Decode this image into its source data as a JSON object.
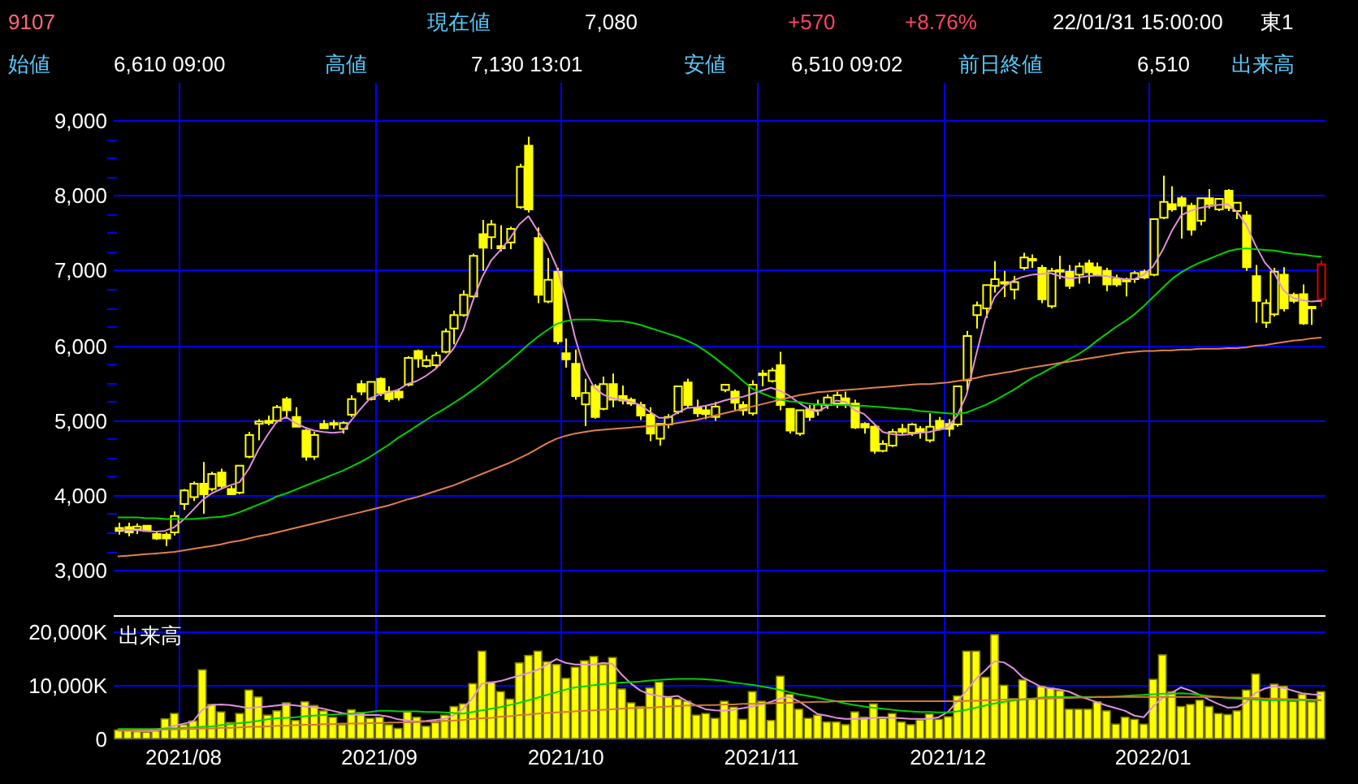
{
  "chart_data": [
    {
      "type": "candlestick",
      "title": "9107",
      "annotations": [
        "現在値",
        "7,080",
        "+570",
        "+8.76%",
        "22/01/31 15:00:00",
        "東1",
        "始値",
        "6,610 09:00",
        "高値",
        "7,130 13:01",
        "安値",
        "6,510 09:02",
        "前日終値",
        "6,510",
        "出来高"
      ],
      "categories": [
        null,
        null,
        null,
        null,
        null,
        null,
        null,
        "2021/08",
        null,
        null,
        null,
        null,
        null,
        null,
        null,
        null,
        null,
        null,
        null,
        null,
        null,
        null,
        null,
        null,
        null,
        null,
        null,
        null,
        "2021/09",
        null,
        null,
        null,
        null,
        null,
        null,
        null,
        null,
        null,
        null,
        null,
        null,
        null,
        null,
        null,
        null,
        null,
        null,
        null,
        "2021/10",
        null,
        null,
        null,
        null,
        null,
        null,
        null,
        null,
        null,
        null,
        null,
        null,
        null,
        null,
        null,
        null,
        null,
        null,
        null,
        null,
        "2021/11",
        null,
        null,
        null,
        null,
        null,
        null,
        null,
        null,
        null,
        null,
        null,
        null,
        null,
        null,
        null,
        null,
        null,
        null,
        null,
        "2021/12",
        null,
        null,
        null,
        null,
        null,
        null,
        null,
        null,
        null,
        null,
        null,
        null,
        null,
        null,
        null,
        null,
        null,
        null,
        null,
        null,
        null,
        "2022/01",
        null,
        null,
        null,
        null,
        null,
        null,
        null,
        null,
        null,
        null,
        null,
        null,
        null,
        null,
        null,
        null,
        null,
        null
      ],
      "ohlc": [
        [
          3560,
          3630,
          3470,
          3520
        ],
        [
          3570,
          3630,
          3450,
          3500
        ],
        [
          3540,
          3620,
          3480,
          3580
        ],
        [
          3590,
          3600,
          3510,
          3520
        ],
        [
          3480,
          3520,
          3400,
          3420
        ],
        [
          3470,
          3500,
          3320,
          3420
        ],
        [
          3500,
          3780,
          3460,
          3720
        ],
        [
          3880,
          4080,
          3800,
          4060
        ],
        [
          3970,
          4180,
          3920,
          4150
        ],
        [
          4150,
          4440,
          3750,
          4010
        ],
        [
          4080,
          4310,
          4050,
          4280
        ],
        [
          4300,
          4350,
          4080,
          4120
        ],
        [
          4080,
          4120,
          4000,
          4010
        ],
        [
          4030,
          4400,
          4010,
          4390
        ],
        [
          4510,
          4840,
          4490,
          4800
        ],
        [
          4950,
          5010,
          4730,
          4980
        ],
        [
          4990,
          5060,
          4930,
          4960
        ],
        [
          4990,
          5200,
          4960,
          5170
        ],
        [
          5280,
          5310,
          5020,
          5130
        ],
        [
          5040,
          5170,
          4900,
          4910
        ],
        [
          4860,
          4880,
          4460,
          4510
        ],
        [
          4510,
          4840,
          4470,
          4800
        ],
        [
          4950,
          5000,
          4880,
          4890
        ],
        [
          4940,
          5000,
          4880,
          4960
        ],
        [
          4880,
          4980,
          4820,
          4960
        ],
        [
          5070,
          5330,
          5040,
          5280
        ],
        [
          5480,
          5530,
          5330,
          5380
        ],
        [
          5280,
          5520,
          5260,
          5510
        ],
        [
          5550,
          5570,
          5320,
          5360
        ],
        [
          5380,
          5450,
          5240,
          5280
        ],
        [
          5380,
          5420,
          5260,
          5300
        ],
        [
          5470,
          5850,
          5450,
          5830
        ],
        [
          5920,
          5940,
          5700,
          5820
        ],
        [
          5720,
          5860,
          5700,
          5800
        ],
        [
          5730,
          5910,
          5700,
          5860
        ],
        [
          5910,
          6220,
          5890,
          6180
        ],
        [
          6220,
          6460,
          6010,
          6400
        ],
        [
          6400,
          6730,
          6380,
          6670
        ],
        [
          6650,
          7220,
          6630,
          7190
        ],
        [
          7480,
          7670,
          6990,
          7300
        ],
        [
          7440,
          7670,
          7280,
          7610
        ],
        [
          7320,
          7600,
          7250,
          7290
        ],
        [
          7370,
          7580,
          7280,
          7550
        ],
        [
          7840,
          8420,
          7820,
          8380
        ],
        [
          8660,
          8780,
          7770,
          7810
        ],
        [
          7430,
          7570,
          6560,
          6670
        ],
        [
          6580,
          7160,
          6560,
          6870
        ],
        [
          6980,
          7030,
          6010,
          6050
        ],
        [
          5890,
          6090,
          5700,
          5810
        ],
        [
          5750,
          5940,
          5270,
          5320
        ],
        [
          5210,
          5550,
          4920,
          5360
        ],
        [
          5450,
          5480,
          5020,
          5040
        ],
        [
          5150,
          5580,
          5130,
          5480
        ],
        [
          5480,
          5620,
          5170,
          5270
        ],
        [
          5320,
          5460,
          5210,
          5260
        ],
        [
          5270,
          5300,
          5190,
          5220
        ],
        [
          5200,
          5240,
          5000,
          5060
        ],
        [
          5070,
          5170,
          4720,
          4820
        ],
        [
          4750,
          4960,
          4660,
          4950
        ],
        [
          4940,
          5080,
          4890,
          5040
        ],
        [
          5110,
          5460,
          5080,
          5450
        ],
        [
          5500,
          5550,
          5160,
          5200
        ],
        [
          5160,
          5270,
          5040,
          5090
        ],
        [
          5130,
          5200,
          5010,
          5080
        ],
        [
          5040,
          5240,
          4990,
          5180
        ],
        [
          5400,
          5480,
          5370,
          5470
        ],
        [
          5380,
          5410,
          5130,
          5230
        ],
        [
          5200,
          5250,
          5060,
          5130
        ],
        [
          5090,
          5530,
          5060,
          5470
        ],
        [
          5600,
          5670,
          5450,
          5620
        ],
        [
          5520,
          5700,
          5500,
          5660
        ],
        [
          5730,
          5910,
          5130,
          5200
        ],
        [
          5150,
          5160,
          4820,
          4860
        ],
        [
          4820,
          5140,
          4790,
          5130
        ],
        [
          5140,
          5200,
          4990,
          5040
        ],
        [
          5130,
          5270,
          5060,
          5210
        ],
        [
          5200,
          5340,
          5150,
          5300
        ],
        [
          5220,
          5380,
          5160,
          5330
        ],
        [
          5290,
          5380,
          5160,
          5200
        ],
        [
          5220,
          5270,
          4880,
          4900
        ],
        [
          4950,
          4970,
          4820,
          4900
        ],
        [
          4910,
          4930,
          4550,
          4590
        ],
        [
          4590,
          4730,
          4570,
          4680
        ],
        [
          4660,
          4880,
          4640,
          4840
        ],
        [
          4880,
          4950,
          4800,
          4840
        ],
        [
          4830,
          4960,
          4790,
          4940
        ],
        [
          4880,
          4920,
          4750,
          4840
        ],
        [
          4730,
          5090,
          4700,
          4910
        ],
        [
          4990,
          5040,
          4860,
          4880
        ],
        [
          4950,
          5010,
          4780,
          4880
        ],
        [
          4940,
          5450,
          4910,
          5450
        ],
        [
          5530,
          6190,
          5390,
          6120
        ],
        [
          6400,
          6580,
          6220,
          6530
        ],
        [
          6490,
          6800,
          6360,
          6800
        ],
        [
          6790,
          7120,
          6700,
          6880
        ],
        [
          6820,
          6990,
          6640,
          6840
        ],
        [
          6740,
          6920,
          6610,
          6840
        ],
        [
          7030,
          7230,
          7000,
          7170
        ],
        [
          7130,
          7210,
          7030,
          7150
        ],
        [
          7030,
          7070,
          6560,
          6610
        ],
        [
          6520,
          7030,
          6490,
          6990
        ],
        [
          6990,
          7190,
          6880,
          7000
        ],
        [
          6980,
          7070,
          6750,
          6790
        ],
        [
          6940,
          7100,
          6820,
          7050
        ],
        [
          7090,
          7140,
          6820,
          6970
        ],
        [
          7040,
          7100,
          6920,
          6940
        ],
        [
          6990,
          7030,
          6720,
          6810
        ],
        [
          6880,
          6940,
          6780,
          6810
        ],
        [
          6880,
          6900,
          6650,
          6850
        ],
        [
          6880,
          6990,
          6830,
          6960
        ],
        [
          6980,
          7010,
          6880,
          6900
        ],
        [
          6940,
          7690,
          6920,
          7680
        ],
        [
          7700,
          8260,
          7680,
          7910
        ],
        [
          7880,
          8120,
          7780,
          7810
        ],
        [
          7960,
          7990,
          7420,
          7860
        ],
        [
          7860,
          7900,
          7460,
          7540
        ],
        [
          7660,
          7970,
          7600,
          7960
        ],
        [
          7960,
          8080,
          7820,
          7880
        ],
        [
          7810,
          7960,
          7790,
          7950
        ],
        [
          8060,
          8080,
          7790,
          7830
        ],
        [
          7790,
          7910,
          7680,
          7900
        ],
        [
          7730,
          7790,
          6990,
          7040
        ],
        [
          6920,
          7070,
          6300,
          6590
        ],
        [
          6300,
          6610,
          6230,
          6560
        ],
        [
          6410,
          7030,
          6380,
          6980
        ],
        [
          6940,
          7040,
          6450,
          6490
        ],
        [
          6670,
          6700,
          6560,
          6590
        ],
        [
          6680,
          6810,
          6270,
          6290
        ],
        [
          6500,
          6520,
          6270,
          6510
        ],
        [
          6610,
          7130,
          6510,
          7080
        ]
      ],
      "colors": [
        "#ffff00",
        "#ffff00",
        "#ffff00",
        "#ffff00",
        "#ffff00",
        "#ffff00",
        "#ffff00",
        "#ffff00",
        "#ffff00",
        "#ffff00",
        "#ffff00",
        "#ffff00",
        "#ffff00",
        "#ffff00",
        "#ffff00",
        "#ffff00",
        "#ffff00",
        "#ffff00",
        "#ffff00",
        "#ffff00",
        "#ffff00",
        "#ffff00",
        "#ffff00",
        "#ffff00",
        "#ffff00",
        "#ffff00",
        "#ffff00",
        "#ffff00",
        "#ffff00",
        "#ffff00",
        "#ffff00",
        "#ffff00",
        "#ffff00",
        "#ffff00",
        "#ffff00",
        "#ffff00",
        "#ffff00",
        "#ffff00",
        "#ffff00",
        "#ffff00",
        "#ffff00",
        "#ffff00",
        "#ffff00",
        "#ffff00",
        "#ffff00",
        "#ffff00",
        "#ffff00",
        "#ffff00",
        "#ffff00",
        "#ffff00",
        "#ffff00",
        "#ffff00",
        "#ffff00",
        "#ffff00",
        "#ffff00",
        "#ffff00",
        "#ffff00",
        "#ffff00",
        "#ffff00",
        "#ffff00",
        "#ffff00",
        "#ffff00",
        "#ffff00",
        "#ffff00",
        "#ffff00",
        "#ffff00",
        "#ffff00",
        "#ffff00",
        "#ffff00",
        "#ffff00",
        "#ffff00",
        "#ffff00",
        "#ffff00",
        "#ffff00",
        "#ffff00",
        "#ffff00",
        "#ffff00",
        "#ffff00",
        "#ffff00",
        "#ffff00",
        "#ffff00",
        "#ffff00",
        "#ffff00",
        "#ffff00",
        "#ffff00",
        "#ffff00",
        "#ffff00",
        "#ffff00",
        "#ffff00",
        "#ffff00",
        "#ffff00",
        "#ffff00",
        "#ffff00",
        "#ffff00",
        "#ffff00",
        "#ffff00",
        "#ffff00",
        "#ffff00",
        "#ffff00",
        "#ffff00",
        "#ffff00",
        "#ffff00",
        "#ffff00",
        "#ffff00",
        "#ffff00",
        "#ffff00",
        "#ffff00",
        "#ffff00",
        "#ffff00",
        "#ffff00",
        "#ffff00",
        "#ffff00",
        "#ffff00",
        "#ffff00",
        "#ffff00",
        "#ffff00",
        "#ffff00",
        "#ffff00",
        "#ffff00",
        "#ffff00",
        "#ffff00",
        "#ffff00",
        "#ffff00",
        "#ffff00",
        "#ffff00",
        "#ffff00",
        "#ffff00",
        "#ffff00",
        "#ffff00",
        "#e00000"
      ],
      "series": [
        {
          "type": "line",
          "color": "#e090e0",
          "values": [
            3540,
            3530,
            3530,
            3520,
            3510,
            3520,
            3570,
            3670,
            3800,
            3930,
            4020,
            4080,
            4130,
            4170,
            4350,
            4600,
            4800,
            4980,
            5040,
            4960,
            4900,
            4860,
            4840,
            4830,
            4840,
            5000,
            5150,
            5290,
            5340,
            5370,
            5400,
            5480,
            5520,
            5590,
            5680,
            5810,
            5960,
            6200,
            6580,
            6900,
            7130,
            7270,
            7420,
            7610,
            7720,
            7520,
            7330,
            7050,
            6620,
            6100,
            5680,
            5440,
            5340,
            5290,
            5270,
            5240,
            5200,
            5110,
            5030,
            5030,
            5100,
            5160,
            5170,
            5190,
            5220,
            5260,
            5290,
            5310,
            5350,
            5390,
            5430,
            5390,
            5320,
            5230,
            5150,
            5110,
            5180,
            5260,
            5240,
            5130,
            5080,
            4960,
            4840,
            4810,
            4800,
            4810,
            4830,
            4840,
            4870,
            4910,
            5060,
            5340,
            5860,
            6350,
            6640,
            6780,
            6860,
            6910,
            6940,
            6950,
            6960,
            6920,
            6890,
            6900,
            6920,
            6930,
            6920,
            6900,
            6880,
            6880,
            6940,
            7050,
            7260,
            7520,
            7730,
            7790,
            7830,
            7850,
            7870,
            7880,
            7780,
            7600,
            7330,
            7100,
            6960,
            6730,
            6630,
            6600,
            6580,
            6590
          ]
        },
        {
          "type": "line",
          "color": "#00d000",
          "values": [
            3700,
            3700,
            3700,
            3690,
            3690,
            3680,
            3680,
            3680,
            3680,
            3690,
            3700,
            3710,
            3730,
            3770,
            3820,
            3870,
            3920,
            3980,
            4020,
            4070,
            4120,
            4170,
            4220,
            4270,
            4320,
            4380,
            4440,
            4510,
            4590,
            4670,
            4760,
            4840,
            4920,
            5000,
            5080,
            5150,
            5230,
            5310,
            5400,
            5490,
            5590,
            5690,
            5790,
            5900,
            6010,
            6110,
            6200,
            6280,
            6320,
            6340,
            6340,
            6340,
            6330,
            6320,
            6320,
            6300,
            6270,
            6230,
            6190,
            6150,
            6110,
            6060,
            6000,
            5920,
            5830,
            5730,
            5630,
            5520,
            5420,
            5360,
            5310,
            5270,
            5250,
            5240,
            5220,
            5210,
            5210,
            5200,
            5200,
            5190,
            5190,
            5180,
            5170,
            5160,
            5150,
            5140,
            5120,
            5110,
            5100,
            5090,
            5080,
            5100,
            5150,
            5200,
            5260,
            5330,
            5400,
            5480,
            5560,
            5620,
            5690,
            5750,
            5810,
            5880,
            5960,
            6060,
            6150,
            6240,
            6320,
            6410,
            6520,
            6640,
            6760,
            6880,
            6970,
            7040,
            7100,
            7150,
            7200,
            7250,
            7280,
            7290,
            7280,
            7270,
            7260,
            7240,
            7220,
            7210,
            7190,
            7180
          ]
        },
        {
          "type": "line",
          "color": "#e0804a",
          "values": [
            3180,
            3190,
            3200,
            3210,
            3220,
            3230,
            3240,
            3260,
            3280,
            3300,
            3320,
            3340,
            3370,
            3390,
            3420,
            3450,
            3470,
            3500,
            3530,
            3560,
            3590,
            3620,
            3650,
            3680,
            3710,
            3740,
            3770,
            3800,
            3830,
            3860,
            3900,
            3940,
            3970,
            4010,
            4050,
            4090,
            4130,
            4180,
            4230,
            4280,
            4330,
            4380,
            4430,
            4490,
            4550,
            4620,
            4690,
            4750,
            4790,
            4820,
            4840,
            4860,
            4870,
            4880,
            4890,
            4900,
            4910,
            4920,
            4930,
            4940,
            4960,
            4980,
            5000,
            5030,
            5060,
            5090,
            5120,
            5150,
            5180,
            5210,
            5240,
            5270,
            5300,
            5330,
            5350,
            5370,
            5380,
            5390,
            5400,
            5410,
            5420,
            5430,
            5440,
            5450,
            5460,
            5470,
            5480,
            5480,
            5490,
            5500,
            5520,
            5540,
            5560,
            5590,
            5610,
            5630,
            5650,
            5680,
            5700,
            5720,
            5740,
            5760,
            5780,
            5800,
            5820,
            5840,
            5860,
            5880,
            5900,
            5910,
            5920,
            5920,
            5930,
            5930,
            5940,
            5940,
            5950,
            5950,
            5950,
            5960,
            5960,
            5970,
            5990,
            6000,
            6020,
            6040,
            6060,
            6070,
            6090,
            6100
          ]
        }
      ],
      "ylim": [
        2400,
        9500
      ],
      "yticks": [
        {
          "value": 3000,
          "label": "3,000"
        },
        {
          "value": 3250,
          "label": null
        },
        {
          "value": 3500,
          "label": null
        },
        {
          "value": 3750,
          "label": null
        },
        {
          "value": 4000,
          "label": "4,000"
        },
        {
          "value": 4250,
          "label": null
        },
        {
          "value": 4500,
          "label": null
        },
        {
          "value": 4750,
          "label": null
        },
        {
          "value": 5000,
          "label": "5,000"
        },
        {
          "value": 5250,
          "label": null
        },
        {
          "value": 5500,
          "label": null
        },
        {
          "value": 5750,
          "label": null
        },
        {
          "value": 6000,
          "label": "6,000"
        },
        {
          "value": 6250,
          "label": null
        },
        {
          "value": 6500,
          "label": null
        },
        {
          "value": 6750,
          "label": null
        },
        {
          "value": 7000,
          "label": "7,000"
        },
        {
          "value": 7250,
          "label": null
        },
        {
          "value": 7500,
          "label": null
        },
        {
          "value": 7750,
          "label": null
        },
        {
          "value": 8000,
          "label": "8,000"
        },
        {
          "value": 8250,
          "label": null
        },
        {
          "value": 8500,
          "label": null
        },
        {
          "value": 8750,
          "label": null
        },
        {
          "value": 9000,
          "label": "9,000"
        }
      ],
      "grid": true,
      "tick_labels": "y"
    },
    {
      "type": "bar",
      "title": "出来高",
      "categories": [
        null,
        null,
        null,
        null,
        null,
        null,
        null,
        "2021/08",
        null,
        null,
        null,
        null,
        null,
        null,
        null,
        null,
        null,
        null,
        null,
        null,
        null,
        null,
        null,
        null,
        null,
        null,
        null,
        null,
        "2021/09",
        null,
        null,
        null,
        null,
        null,
        null,
        null,
        null,
        null,
        null,
        null,
        null,
        null,
        null,
        null,
        null,
        null,
        null,
        null,
        "2021/10",
        null,
        null,
        null,
        null,
        null,
        null,
        null,
        null,
        null,
        null,
        null,
        null,
        null,
        null,
        null,
        null,
        null,
        null,
        null,
        null,
        "2021/11",
        null,
        null,
        null,
        null,
        null,
        null,
        null,
        null,
        null,
        null,
        null,
        null,
        null,
        null,
        null,
        null,
        null,
        null,
        null,
        "2021/12",
        null,
        null,
        null,
        null,
        null,
        null,
        null,
        null,
        null,
        null,
        null,
        null,
        null,
        null,
        null,
        null,
        null,
        null,
        null,
        null,
        null,
        "2022/01",
        null,
        null,
        null,
        null,
        null,
        null,
        null,
        null,
        null,
        null,
        null,
        null,
        null,
        null,
        null,
        null,
        null,
        null
      ],
      "series": [
        {
          "color": "#ffff00",
          "values": [
            1600,
            1500,
            1300,
            1200,
            1400,
            3700,
            4700,
            2600,
            3300,
            12900,
            6400,
            5000,
            3000,
            4700,
            9100,
            7800,
            4400,
            5200,
            6700,
            3400,
            6900,
            6200,
            5200,
            4000,
            2600,
            5400,
            4900,
            3800,
            4000,
            2600,
            1900,
            5000,
            4000,
            2300,
            3000,
            4400,
            6000,
            6500,
            10300,
            16400,
            10600,
            8800,
            7400,
            14200,
            15600,
            16400,
            14400,
            13900,
            11300,
            13400,
            14600,
            15400,
            13900,
            15200,
            9300,
            6700,
            6000,
            9500,
            10600,
            7800,
            7400,
            7000,
            4400,
            4700,
            3800,
            7000,
            5900,
            3600,
            8800,
            7000,
            3400,
            11700,
            8300,
            5500,
            3800,
            4400,
            3100,
            3100,
            2600,
            5000,
            4000,
            6500,
            3800,
            4700,
            3100,
            2600,
            3500,
            4600,
            3600,
            4100,
            8000,
            16400,
            16400,
            11500,
            19500,
            10000,
            7500,
            11000,
            7500,
            9800,
            9500,
            9000,
            5500,
            5500,
            5500,
            6900,
            5200,
            2700,
            4000,
            3600,
            2700,
            11100,
            15700,
            8800,
            6000,
            6400,
            7200,
            6000,
            4700,
            4500,
            5200,
            9100,
            12100,
            7200,
            10200,
            9800,
            7000,
            8300,
            6900,
            8800
          ]
        },
        {
          "type": "line",
          "color": "#e090e0",
          "values": [
            1500,
            1500,
            1400,
            1400,
            1400,
            1900,
            2400,
            2800,
            3200,
            5400,
            6300,
            6400,
            6300,
            6000,
            5700,
            5900,
            6000,
            6200,
            6400,
            6200,
            6000,
            5900,
            5600,
            5200,
            4800,
            4500,
            4400,
            4400,
            4400,
            4100,
            3600,
            3400,
            3200,
            3300,
            3500,
            3700,
            4400,
            5600,
            7600,
            10300,
            10500,
            10800,
            11300,
            11800,
            12300,
            12900,
            13900,
            14900,
            14200,
            13900,
            13900,
            13900,
            14200,
            14000,
            12000,
            10300,
            9000,
            8300,
            8000,
            7800,
            8000,
            7000,
            6200,
            5500,
            5300,
            5200,
            5400,
            5700,
            6000,
            6400,
            6900,
            7500,
            7800,
            7000,
            5800,
            4600,
            4300,
            3900,
            3700,
            3700,
            3700,
            3900,
            4000,
            3900,
            3800,
            3700,
            3700,
            3700,
            4000,
            5000,
            7000,
            9000,
            11200,
            12800,
            14500,
            14300,
            13200,
            11500,
            10600,
            9700,
            9400,
            9200,
            8800,
            8000,
            7400,
            6800,
            6200,
            5700,
            5200,
            4300,
            4000,
            6000,
            7600,
            8600,
            9600,
            9000,
            8200,
            7300,
            6500,
            5800,
            5900,
            6800,
            8600,
            9400,
            9800,
            9500,
            9000,
            8500,
            8300,
            8200
          ]
        },
        {
          "type": "line",
          "color": "#00d000",
          "values": [
            1800,
            1800,
            1800,
            1800,
            1800,
            1900,
            1900,
            2000,
            2100,
            2200,
            2300,
            2500,
            2700,
            2900,
            3100,
            3300,
            3600,
            3800,
            3900,
            4000,
            4200,
            4300,
            4400,
            4500,
            4600,
            4700,
            4800,
            5000,
            5200,
            5200,
            5100,
            5100,
            5100,
            5000,
            5000,
            4900,
            4800,
            4700,
            5000,
            5300,
            5600,
            5900,
            6300,
            6700,
            7200,
            7700,
            8200,
            8700,
            9200,
            9600,
            9800,
            10000,
            10200,
            10400,
            10500,
            10600,
            10700,
            10900,
            11000,
            11100,
            11200,
            11200,
            11200,
            11100,
            11000,
            10800,
            10500,
            10300,
            10100,
            9800,
            9500,
            9100,
            8700,
            8300,
            8000,
            7700,
            7300,
            7000,
            6600,
            6300,
            6000,
            5800,
            5600,
            5400,
            5200,
            5100,
            5000,
            5000,
            4900,
            4900,
            5100,
            5400,
            5800,
            6200,
            6600,
            6900,
            7100,
            7300,
            7500,
            7700,
            7800,
            7800,
            7800,
            7800,
            7800,
            7800,
            7800,
            7900,
            8000,
            8100,
            8200,
            8300,
            8400,
            8400,
            8500,
            8400,
            8200,
            8000,
            7800,
            7600,
            7500,
            7400,
            7300,
            7200,
            7200,
            7200,
            7200,
            7200,
            7200,
            7200
          ]
        },
        {
          "type": "line",
          "color": "#d07838",
          "values": [
            1500,
            1500,
            1600,
            1600,
            1700,
            1700,
            1700,
            1800,
            1800,
            1900,
            1900,
            2000,
            2000,
            2100,
            2200,
            2200,
            2300,
            2400,
            2400,
            2500,
            2600,
            2600,
            2700,
            2700,
            2800,
            2800,
            2800,
            2900,
            2900,
            3000,
            3000,
            3100,
            3100,
            3200,
            3200,
            3300,
            3400,
            3500,
            3700,
            3800,
            3900,
            4100,
            4200,
            4400,
            4500,
            4700,
            4800,
            4900,
            5000,
            5100,
            5200,
            5300,
            5400,
            5500,
            5600,
            5700,
            5700,
            5800,
            5900,
            6000,
            6100,
            6200,
            6200,
            6300,
            6300,
            6400,
            6400,
            6500,
            6500,
            6600,
            6600,
            6700,
            6700,
            6800,
            6800,
            6900,
            6900,
            7000,
            7000,
            7000,
            7000,
            7000,
            7000,
            7000,
            7000,
            7000,
            7000,
            7000,
            7000,
            7000,
            7000,
            7100,
            7100,
            7200,
            7200,
            7300,
            7300,
            7400,
            7400,
            7500,
            7500,
            7600,
            7600,
            7700,
            7700,
            7800,
            7800,
            7800,
            7800,
            7800,
            7800,
            7800,
            7800,
            7800,
            7800,
            7800,
            7800,
            7800,
            7800,
            7700,
            7700,
            7600,
            7600,
            7500,
            7500,
            7400,
            7400,
            7300,
            7300,
            7200
          ]
        }
      ],
      "ylim": [
        0,
        23000
      ],
      "yticks": [
        0,
        {
          "value": 10000,
          "label": "10,000K"
        },
        {
          "value": 20000,
          "label": "20,000K"
        }
      ],
      "grid": true
    }
  ]
}
